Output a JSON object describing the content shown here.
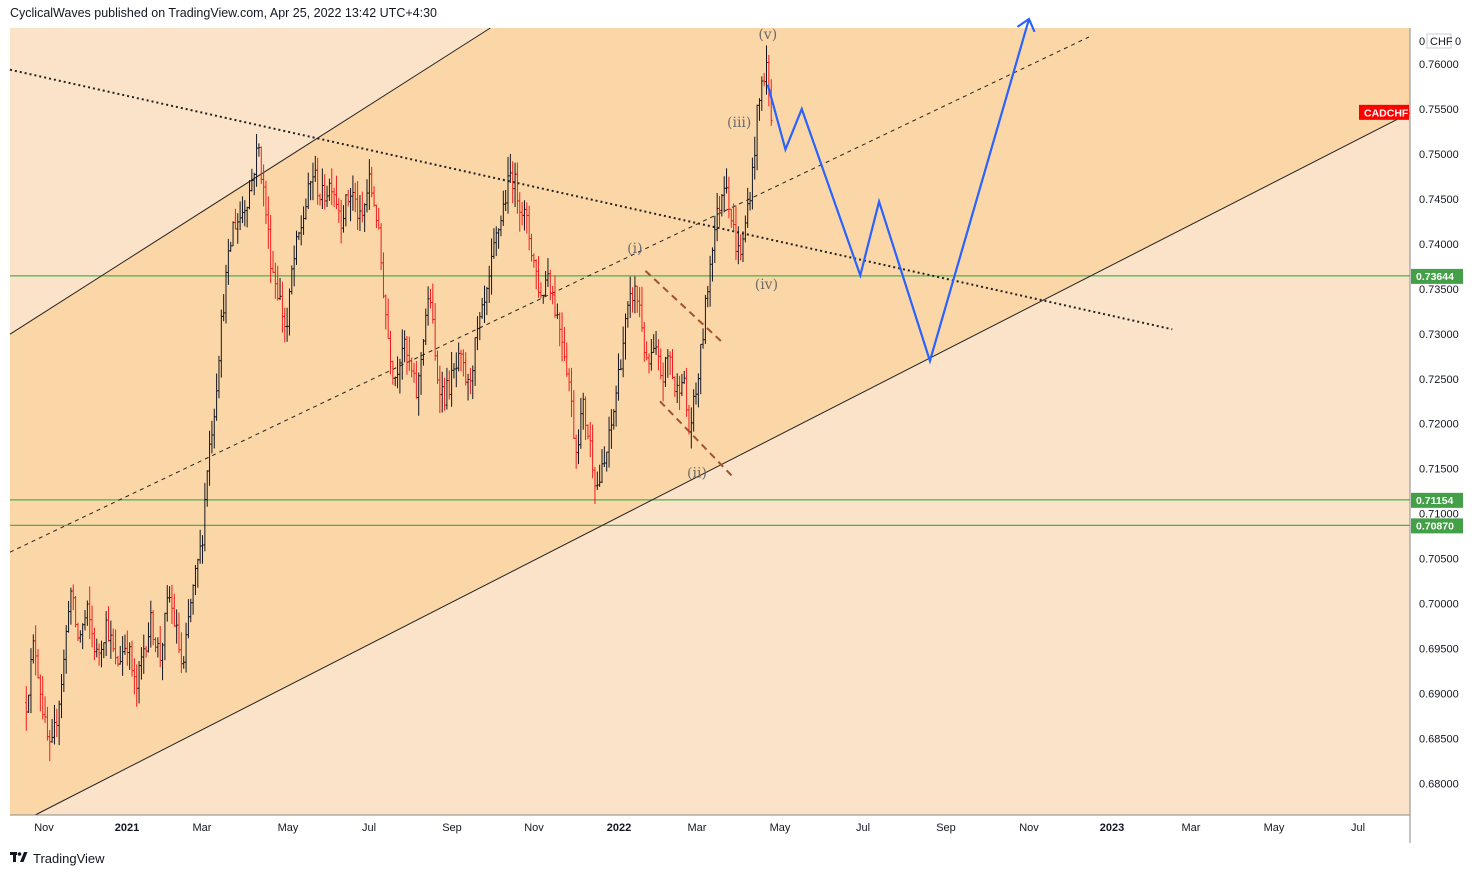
{
  "header": {
    "published": "CyclicalWaves published on TradingView.com, Apr 25, 2022 13:42 UTC+4:30"
  },
  "footer": {
    "brand": "TradingView",
    "logo_text": "17"
  },
  "colors": {
    "background_inner": "#fbd7a8",
    "background_outer": "#fbe3c9",
    "bullish_bar": "#131722",
    "bearish_bar": "#ef1c1c",
    "projection": "#2962ff",
    "support_line": "#4caf50",
    "symbol_tag": "#ff0000",
    "level_tag": "#43a047",
    "trend_line": "#222222",
    "wedge_line": "#a0522d"
  },
  "icons": {
    "logo": "tradingview-logo-icon"
  },
  "chart_data": {
    "type": "ohlc",
    "symbol": "CADCHF",
    "currency_label": "CHF",
    "ylim": [
      0.6765,
      0.764
    ],
    "y_ticks": [
      {
        "v": 0.76,
        "label": "0.76000"
      },
      {
        "v": 0.755,
        "label": "0.75500"
      },
      {
        "v": 0.75,
        "label": "0.75000"
      },
      {
        "v": 0.745,
        "label": "0.74500"
      },
      {
        "v": 0.74,
        "label": "0.74000"
      },
      {
        "v": 0.735,
        "label": "0.73500"
      },
      {
        "v": 0.73,
        "label": "0.73000"
      },
      {
        "v": 0.725,
        "label": "0.72500"
      },
      {
        "v": 0.72,
        "label": "0.72000"
      },
      {
        "v": 0.715,
        "label": "0.71500"
      },
      {
        "v": 0.71,
        "label": "0.71000"
      },
      {
        "v": 0.705,
        "label": "0.70500"
      },
      {
        "v": 0.7,
        "label": "0.70000"
      },
      {
        "v": 0.695,
        "label": "0.69500"
      },
      {
        "v": 0.69,
        "label": "0.69000"
      },
      {
        "v": 0.685,
        "label": "0.68500"
      },
      {
        "v": 0.68,
        "label": "0.68000"
      }
    ],
    "x_ticks": [
      {
        "date": "2020-11",
        "label": "Nov",
        "bold": false
      },
      {
        "date": "2021-01",
        "label": "2021",
        "bold": true
      },
      {
        "date": "2021-03",
        "label": "Mar",
        "bold": false
      },
      {
        "date": "2021-05",
        "label": "May",
        "bold": false
      },
      {
        "date": "2021-07",
        "label": "Jul",
        "bold": false
      },
      {
        "date": "2021-09",
        "label": "Sep",
        "bold": false
      },
      {
        "date": "2021-11",
        "label": "Nov",
        "bold": false
      },
      {
        "date": "2022-01",
        "label": "2022",
        "bold": true
      },
      {
        "date": "2022-03",
        "label": "Mar",
        "bold": false
      },
      {
        "date": "2022-05",
        "label": "May",
        "bold": false
      },
      {
        "date": "2022-07",
        "label": "Jul",
        "bold": false
      },
      {
        "date": "2022-09",
        "label": "Sep",
        "bold": false
      },
      {
        "date": "2022-11",
        "label": "Nov",
        "bold": false
      },
      {
        "date": "2023-01",
        "label": "2023",
        "bold": true
      },
      {
        "date": "2023-03",
        "label": "Mar",
        "bold": false
      },
      {
        "date": "2023-05",
        "label": "May",
        "bold": false
      },
      {
        "date": "2023-07",
        "label": "Jul",
        "bold": false
      }
    ],
    "horizontal_levels": [
      {
        "value": 0.73644,
        "label": "0.73644"
      },
      {
        "value": 0.71154,
        "label": "0.71154"
      },
      {
        "value": 0.7087,
        "label": "0.70870"
      }
    ],
    "price_path": [
      [
        "2020-10-21",
        0.689
      ],
      [
        "2020-10-26",
        0.696
      ],
      [
        "2020-11-02",
        0.686
      ],
      [
        "2020-11-06",
        0.683
      ],
      [
        "2020-11-10",
        0.687
      ],
      [
        "2020-11-16",
        0.694
      ],
      [
        "2020-11-20",
        0.702
      ],
      [
        "2020-11-26",
        0.696
      ],
      [
        "2020-12-03",
        0.699
      ],
      [
        "2020-12-10",
        0.694
      ],
      [
        "2020-12-17",
        0.698
      ],
      [
        "2020-12-24",
        0.693
      ],
      [
        "2021-01-01",
        0.696
      ],
      [
        "2021-01-08",
        0.69
      ],
      [
        "2021-01-14",
        0.695
      ],
      [
        "2021-01-20",
        0.698
      ],
      [
        "2021-01-27",
        0.694
      ],
      [
        "2021-02-03",
        0.701
      ],
      [
        "2021-02-10",
        0.696
      ],
      [
        "2021-02-14",
        0.692
      ],
      [
        "2021-02-19",
        0.699
      ],
      [
        "2021-02-24",
        0.703
      ],
      [
        "2021-03-01",
        0.707
      ],
      [
        "2021-03-05",
        0.716
      ],
      [
        "2021-03-10",
        0.722
      ],
      [
        "2021-03-14",
        0.73
      ],
      [
        "2021-03-18",
        0.736
      ],
      [
        "2021-03-23",
        0.742
      ],
      [
        "2021-03-28",
        0.743
      ],
      [
        "2021-04-04",
        0.746
      ],
      [
        "2021-04-10",
        0.751
      ],
      [
        "2021-04-15",
        0.744
      ],
      [
        "2021-04-19",
        0.738
      ],
      [
        "2021-04-25",
        0.734
      ],
      [
        "2021-04-30",
        0.73
      ],
      [
        "2021-05-04",
        0.737
      ],
      [
        "2021-05-08",
        0.74
      ],
      [
        "2021-05-14",
        0.744
      ],
      [
        "2021-05-20",
        0.748
      ],
      [
        "2021-05-26",
        0.745
      ],
      [
        "2021-06-03",
        0.747
      ],
      [
        "2021-06-10",
        0.743
      ],
      [
        "2021-06-18",
        0.746
      ],
      [
        "2021-06-25",
        0.742
      ],
      [
        "2021-07-01",
        0.747
      ],
      [
        "2021-07-06",
        0.744
      ],
      [
        "2021-07-10",
        0.738
      ],
      [
        "2021-07-15",
        0.73
      ],
      [
        "2021-07-20",
        0.725
      ],
      [
        "2021-07-26",
        0.729
      ],
      [
        "2021-08-01",
        0.726
      ],
      [
        "2021-08-06",
        0.723
      ],
      [
        "2021-08-12",
        0.732
      ],
      [
        "2021-08-16",
        0.734
      ],
      [
        "2021-08-20",
        0.726
      ],
      [
        "2021-08-26",
        0.723
      ],
      [
        "2021-09-01",
        0.725
      ],
      [
        "2021-09-07",
        0.727
      ],
      [
        "2021-09-13",
        0.724
      ],
      [
        "2021-09-20",
        0.73
      ],
      [
        "2021-09-27",
        0.734
      ],
      [
        "2021-10-03",
        0.74
      ],
      [
        "2021-10-09",
        0.744
      ],
      [
        "2021-10-15",
        0.748
      ],
      [
        "2021-10-21",
        0.745
      ],
      [
        "2021-10-27",
        0.742
      ],
      [
        "2021-11-01",
        0.738
      ],
      [
        "2021-11-06",
        0.734
      ],
      [
        "2021-11-11",
        0.737
      ],
      [
        "2021-11-16",
        0.733
      ],
      [
        "2021-11-21",
        0.73
      ],
      [
        "2021-11-26",
        0.725
      ],
      [
        "2021-12-01",
        0.717
      ],
      [
        "2021-12-06",
        0.722
      ],
      [
        "2021-12-11",
        0.718
      ],
      [
        "2021-12-16",
        0.713
      ],
      [
        "2021-12-21",
        0.715
      ],
      [
        "2021-12-27",
        0.72
      ],
      [
        "2022-01-01",
        0.726
      ],
      [
        "2022-01-06",
        0.731
      ],
      [
        "2022-01-12",
        0.735
      ],
      [
        "2022-01-17",
        0.733
      ],
      [
        "2022-01-22",
        0.726
      ],
      [
        "2022-01-28",
        0.728
      ],
      [
        "2022-02-03",
        0.725
      ],
      [
        "2022-02-08",
        0.728
      ],
      [
        "2022-02-13",
        0.723
      ],
      [
        "2022-02-18",
        0.726
      ],
      [
        "2022-02-23",
        0.719
      ],
      [
        "2022-02-28",
        0.723
      ],
      [
        "2022-03-04",
        0.728
      ],
      [
        "2022-03-08",
        0.734
      ],
      [
        "2022-03-12",
        0.74
      ],
      [
        "2022-03-17",
        0.744
      ],
      [
        "2022-03-22",
        0.748
      ],
      [
        "2022-03-26",
        0.743
      ],
      [
        "2022-03-31",
        0.739
      ],
      [
        "2022-04-04",
        0.74
      ],
      [
        "2022-04-07",
        0.744
      ],
      [
        "2022-04-11",
        0.748
      ],
      [
        "2022-04-14",
        0.754
      ],
      [
        "2022-04-18",
        0.758
      ],
      [
        "2022-04-21",
        0.76
      ],
      [
        "2022-04-25",
        0.753
      ]
    ],
    "projection_path": [
      [
        "2022-04-22",
        0.7577
      ],
      [
        "2022-05-05",
        0.7505
      ],
      [
        "2022-05-17",
        0.755
      ],
      [
        "2022-06-29",
        0.7365
      ],
      [
        "2022-07-13",
        0.7447
      ],
      [
        "2022-08-20",
        0.727
      ],
      [
        "2022-11-01",
        0.765
      ]
    ],
    "wave_labels": [
      {
        "text": "(v)",
        "date": "2022-04-22",
        "y": 0.7628
      },
      {
        "text": "(iii)",
        "date": "2022-04-01",
        "y": 0.753
      },
      {
        "text": "(iv)",
        "date": "2022-04-21",
        "y": 0.735
      },
      {
        "text": "(i)",
        "date": "2022-01-13",
        "y": 0.739
      },
      {
        "text": "(ii)",
        "date": "2022-03-01",
        "y": 0.714
      }
    ],
    "channel": {
      "upper": [
        [
          "2020-10-20",
          0.731
        ],
        [
          "2021-10-10",
          0.765
        ]
      ],
      "middle": [
        [
          "2020-10-20",
          0.7065
        ],
        [
          "2022-12-15",
          0.763
        ]
      ],
      "lower": [
        [
          "2020-11-01",
          0.677
        ],
        [
          "2023-08-01",
          0.754
        ]
      ]
    },
    "descending_trendline": [
      [
        "2020-10-20",
        0.759
      ],
      [
        "2023-02-15",
        0.7305
      ]
    ],
    "wedge": {
      "upper": [
        [
          "2022-01-21",
          0.737
        ],
        [
          "2022-03-20",
          0.729
        ]
      ],
      "lower": [
        [
          "2022-02-01",
          0.7225
        ],
        [
          "2022-03-28",
          0.714
        ]
      ]
    }
  }
}
